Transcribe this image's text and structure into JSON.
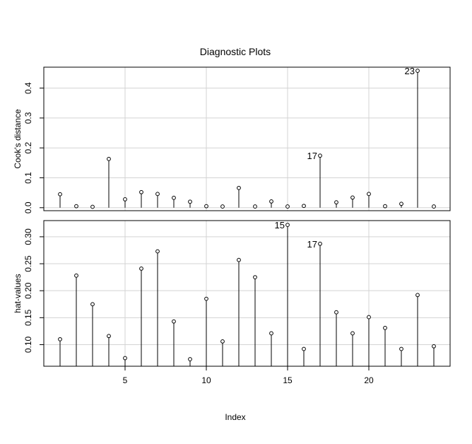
{
  "chart_data": {
    "type": "scatter",
    "title": "Diagnostic Plots",
    "xlabel": "Index",
    "x": [
      1,
      2,
      3,
      4,
      5,
      6,
      7,
      8,
      9,
      10,
      11,
      12,
      13,
      14,
      15,
      16,
      17,
      18,
      19,
      20,
      21,
      22,
      23,
      24
    ],
    "xlim": [
      0,
      25
    ],
    "xticks": [
      "5",
      "10",
      "15",
      "20"
    ],
    "grid": true,
    "panels": [
      {
        "ylabel": "Cook's distance",
        "ylim": [
          -0.01,
          0.47
        ],
        "yticks": [
          "0.0",
          "0.1",
          "0.2",
          "0.3",
          "0.4"
        ],
        "values": [
          0.045,
          0.005,
          0.003,
          0.163,
          0.028,
          0.052,
          0.046,
          0.033,
          0.02,
          0.005,
          0.004,
          0.066,
          0.004,
          0.021,
          0.004,
          0.006,
          0.174,
          0.018,
          0.034,
          0.046,
          0.005,
          0.013,
          0.458,
          0.004
        ],
        "point_labels": [
          {
            "index": 17,
            "text": "17"
          },
          {
            "index": 23,
            "text": "23"
          }
        ]
      },
      {
        "ylabel": "hat-values",
        "ylim": [
          0.06,
          0.33
        ],
        "yticks": [
          "0.10",
          "0.15",
          "0.20",
          "0.25",
          "0.30"
        ],
        "values": [
          0.11,
          0.228,
          0.175,
          0.116,
          0.075,
          0.241,
          0.273,
          0.143,
          0.073,
          0.185,
          0.106,
          0.257,
          0.225,
          0.121,
          0.322,
          0.092,
          0.287,
          0.16,
          0.121,
          0.151,
          0.131,
          0.092,
          0.192,
          0.097
        ],
        "point_labels": [
          {
            "index": 15,
            "text": "15"
          },
          {
            "index": 17,
            "text": "17"
          }
        ]
      }
    ]
  }
}
